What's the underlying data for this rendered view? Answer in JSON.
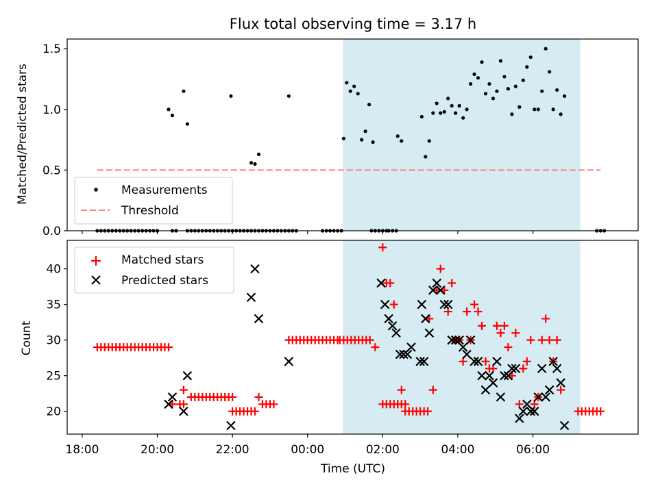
{
  "chart_data": {
    "title": "Flux total observing time = 3.17 h",
    "shaded_interval": {
      "start_h": 2.47,
      "end_h": 5.63,
      "color": "#add8e6"
    },
    "x": {
      "label": "Time (UTC)",
      "range_h": [
        -1.2,
        6.4
      ],
      "ticks": [
        {
          "v": -1.0,
          "label": "18:00"
        },
        {
          "v": 0.0,
          "label": "20:00"
        },
        {
          "v": 1.0,
          "label": "22:00"
        },
        {
          "v": 2.0,
          "label": "00:00"
        },
        {
          "v": 3.0,
          "label": "02:00"
        },
        {
          "v": 4.0,
          "label": "04:00"
        },
        {
          "v": 5.0,
          "label": "06:00"
        }
      ]
    },
    "top": {
      "type": "scatter",
      "ylabel": "Matched/Predicted stars",
      "ylim": [
        0,
        1.58
      ],
      "yticks": [
        {
          "v": 0.0,
          "label": "0.0"
        },
        {
          "v": 0.5,
          "label": "0.5"
        },
        {
          "v": 1.0,
          "label": "1.0"
        },
        {
          "v": 1.5,
          "label": "1.5"
        }
      ],
      "legend": {
        "position": "bottom-left",
        "measurements": "Measurements",
        "threshold": "Threshold"
      },
      "threshold": {
        "value": 0.5,
        "x_range": [
          -0.8,
          5.9
        ],
        "color": "#ff7f7f"
      },
      "zero_ranges": [
        [
          -0.8,
          0.0
        ],
        [
          0.2,
          0.25
        ],
        [
          0.4,
          1.05
        ],
        [
          1.1,
          1.85
        ],
        [
          2.2,
          2.45
        ],
        [
          2.85,
          3.05
        ],
        [
          3.08,
          3.2
        ],
        [
          5.85,
          5.95
        ]
      ],
      "points": [
        [
          0.15,
          1.0
        ],
        [
          0.2,
          0.95
        ],
        [
          0.35,
          1.15
        ],
        [
          0.4,
          0.88
        ],
        [
          0.98,
          1.11
        ],
        [
          1.25,
          0.56
        ],
        [
          1.3,
          0.55
        ],
        [
          1.35,
          0.63
        ],
        [
          1.75,
          1.11
        ],
        [
          2.48,
          0.76
        ],
        [
          2.52,
          1.22
        ],
        [
          2.57,
          1.15
        ],
        [
          2.62,
          1.19
        ],
        [
          2.67,
          1.13
        ],
        [
          2.72,
          0.75
        ],
        [
          2.77,
          0.82
        ],
        [
          2.82,
          1.04
        ],
        [
          2.87,
          0.73
        ],
        [
          3.2,
          0.78
        ],
        [
          3.25,
          0.74
        ],
        [
          3.52,
          0.94
        ],
        [
          3.57,
          0.61
        ],
        [
          3.62,
          0.74
        ],
        [
          3.67,
          0.97
        ],
        [
          3.72,
          1.05
        ],
        [
          3.77,
          0.97
        ],
        [
          3.82,
          0.98
        ],
        [
          3.87,
          1.09
        ],
        [
          3.92,
          1.03
        ],
        [
          3.97,
          0.97
        ],
        [
          4.02,
          1.03
        ],
        [
          4.07,
          0.93
        ],
        [
          4.12,
          1.0
        ],
        [
          4.17,
          1.21
        ],
        [
          4.22,
          1.29
        ],
        [
          4.27,
          1.26
        ],
        [
          4.32,
          1.39
        ],
        [
          4.37,
          1.13
        ],
        [
          4.42,
          1.21
        ],
        [
          4.47,
          1.09
        ],
        [
          4.52,
          1.15
        ],
        [
          4.57,
          1.4
        ],
        [
          4.62,
          1.27
        ],
        [
          4.67,
          1.17
        ],
        [
          4.72,
          0.96
        ],
        [
          4.77,
          1.19
        ],
        [
          4.82,
          1.02
        ],
        [
          4.87,
          1.24
        ],
        [
          4.92,
          1.35
        ],
        [
          4.97,
          1.43
        ],
        [
          5.02,
          1.0
        ],
        [
          5.07,
          1.0
        ],
        [
          5.12,
          1.15
        ],
        [
          5.17,
          1.5
        ],
        [
          5.22,
          1.31
        ],
        [
          5.27,
          1.0
        ],
        [
          5.32,
          1.16
        ],
        [
          5.37,
          0.96
        ],
        [
          5.42,
          1.11
        ]
      ]
    },
    "bottom": {
      "type": "scatter",
      "ylabel": "Count",
      "ylim": [
        16.8,
        44
      ],
      "yticks": [
        {
          "v": 20,
          "label": "20"
        },
        {
          "v": 25,
          "label": "25"
        },
        {
          "v": 30,
          "label": "30"
        },
        {
          "v": 35,
          "label": "35"
        },
        {
          "v": 40,
          "label": "40"
        }
      ],
      "legend": {
        "position": "top-left",
        "matched": "Matched stars",
        "predicted": "Predicted stars"
      },
      "matched_runs": [
        {
          "from": -0.8,
          "to": 0.15,
          "value": 29
        },
        {
          "from": 0.45,
          "to": 1.0,
          "value": 22
        },
        {
          "from": 1.0,
          "to": 1.3,
          "value": 20
        },
        {
          "from": 1.75,
          "to": 2.4,
          "value": 30
        },
        {
          "from": 2.43,
          "to": 2.85,
          "value": 30
        },
        {
          "from": 3.0,
          "to": 3.3,
          "value": 21
        },
        {
          "from": 3.3,
          "to": 3.62,
          "value": 20
        },
        {
          "from": 5.6,
          "to": 5.92,
          "value": 20
        }
      ],
      "matched": [
        [
          0.2,
          21
        ],
        [
          0.3,
          21
        ],
        [
          0.35,
          21
        ],
        [
          0.35,
          23
        ],
        [
          1.35,
          22
        ],
        [
          1.4,
          21
        ],
        [
          1.45,
          21
        ],
        [
          1.5,
          21
        ],
        [
          1.55,
          21
        ],
        [
          2.9,
          29
        ],
        [
          3.0,
          43
        ],
        [
          3.05,
          38
        ],
        [
          3.1,
          38
        ],
        [
          3.15,
          35
        ],
        [
          3.2,
          21
        ],
        [
          3.25,
          23
        ],
        [
          3.62,
          33
        ],
        [
          3.67,
          23
        ],
        [
          3.72,
          37
        ],
        [
          3.77,
          40
        ],
        [
          3.82,
          37
        ],
        [
          3.87,
          34
        ],
        [
          3.92,
          38
        ],
        [
          3.97,
          30
        ],
        [
          4.02,
          30
        ],
        [
          4.07,
          27
        ],
        [
          4.12,
          34
        ],
        [
          4.17,
          30
        ],
        [
          4.22,
          35
        ],
        [
          4.27,
          34
        ],
        [
          4.32,
          32
        ],
        [
          4.37,
          27
        ],
        [
          4.42,
          26
        ],
        [
          4.47,
          26
        ],
        [
          4.52,
          32
        ],
        [
          4.57,
          31
        ],
        [
          4.62,
          32
        ],
        [
          4.67,
          29
        ],
        [
          4.72,
          25
        ],
        [
          4.77,
          31
        ],
        [
          4.82,
          21
        ],
        [
          4.87,
          26
        ],
        [
          4.92,
          27
        ],
        [
          4.97,
          30
        ],
        [
          5.02,
          21
        ],
        [
          5.07,
          22
        ],
        [
          5.12,
          30
        ],
        [
          5.17,
          33
        ],
        [
          5.22,
          30
        ],
        [
          5.27,
          27
        ],
        [
          5.32,
          30
        ],
        [
          5.37,
          23
        ]
      ],
      "predicted": [
        [
          0.15,
          21
        ],
        [
          0.2,
          22
        ],
        [
          0.35,
          20
        ],
        [
          0.4,
          25
        ],
        [
          0.98,
          18
        ],
        [
          1.25,
          36
        ],
        [
          1.3,
          40
        ],
        [
          1.35,
          33
        ],
        [
          1.75,
          27
        ],
        [
          2.98,
          38
        ],
        [
          3.03,
          35
        ],
        [
          3.08,
          33
        ],
        [
          3.13,
          32
        ],
        [
          3.18,
          31
        ],
        [
          3.23,
          28
        ],
        [
          3.28,
          28
        ],
        [
          3.33,
          28
        ],
        [
          3.38,
          29
        ],
        [
          3.5,
          27
        ],
        [
          3.55,
          27
        ],
        [
          3.52,
          35
        ],
        [
          3.57,
          33
        ],
        [
          3.62,
          31
        ],
        [
          3.67,
          37
        ],
        [
          3.72,
          38
        ],
        [
          3.77,
          37
        ],
        [
          3.82,
          35
        ],
        [
          3.87,
          35
        ],
        [
          3.92,
          30
        ],
        [
          3.97,
          30
        ],
        [
          4.02,
          30
        ],
        [
          4.07,
          29
        ],
        [
          4.12,
          28
        ],
        [
          4.17,
          30
        ],
        [
          4.22,
          27
        ],
        [
          4.27,
          27
        ],
        [
          4.32,
          25
        ],
        [
          4.37,
          23
        ],
        [
          4.42,
          25
        ],
        [
          4.47,
          24
        ],
        [
          4.52,
          27
        ],
        [
          4.57,
          22
        ],
        [
          4.62,
          25
        ],
        [
          4.67,
          25
        ],
        [
          4.72,
          26
        ],
        [
          4.77,
          26
        ],
        [
          4.82,
          19
        ],
        [
          4.87,
          20
        ],
        [
          4.92,
          21
        ],
        [
          4.97,
          20
        ],
        [
          5.02,
          20
        ],
        [
          5.07,
          22
        ],
        [
          5.12,
          26
        ],
        [
          5.17,
          22
        ],
        [
          5.22,
          23
        ],
        [
          5.27,
          27
        ],
        [
          5.32,
          26
        ],
        [
          5.37,
          24
        ],
        [
          5.42,
          18
        ]
      ]
    }
  }
}
